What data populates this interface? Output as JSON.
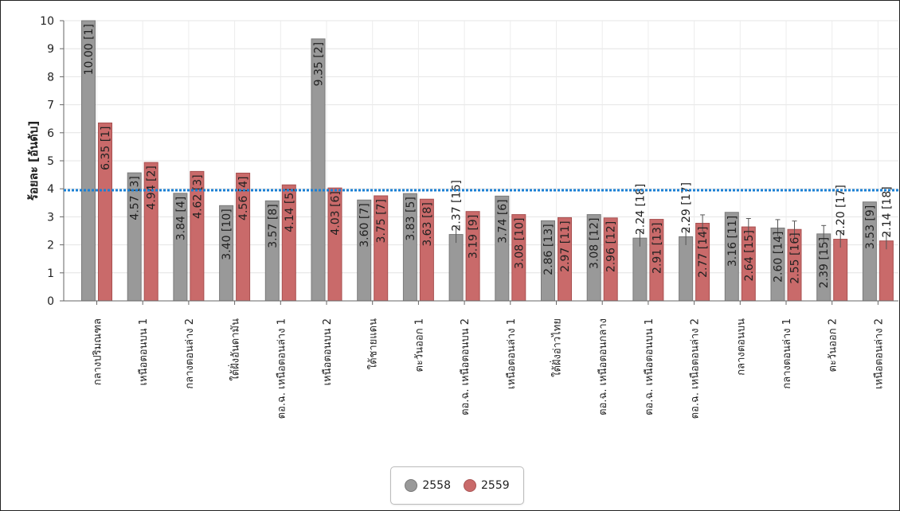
{
  "chart_data": {
    "type": "bar",
    "title": "",
    "xlabel": "",
    "ylabel": "ร้อยละ [อันดับ]",
    "ylim": [
      0,
      10
    ],
    "yticks": [
      "0",
      "1",
      "2",
      "3",
      "4",
      "5",
      "6",
      "7",
      "8",
      "9",
      "10"
    ],
    "grid": true,
    "legend_position": "bottom-center",
    "reference_line": {
      "value": 3.95,
      "style": "dotted",
      "color": "#1a7fd4"
    },
    "categories": [
      "กลางปริมณฑล",
      "เหนือตอนบน 1",
      "กลางตอนล่าง 2",
      "ใต้ฝั่งอันดามัน",
      "ตอ.ฉ. เหนือตอนล่าง 1",
      "เหนือตอนบน 2",
      "ใต้ชายแดน",
      "ตะวันออก 1",
      "ตอ.ฉ. เหนือตอนบน 2",
      "เหนือตอนล่าง 1",
      "ใต้ฝั่งอ่าวไทย",
      "ตอ.ฉ. เหนือตอนกลาง",
      "ตอ.ฉ. เหนือตอนบน 1",
      "ตอ.ฉ. เหนือตอนล่าง 2",
      "กลางตอนบน",
      "กลางตอนล่าง 1",
      "ตะวันออก 2",
      "เหนือตอนล่าง 2"
    ],
    "series": [
      {
        "name": "2558",
        "color": "#999999",
        "values": [
          10.0,
          4.57,
          3.84,
          3.4,
          3.57,
          9.35,
          3.6,
          3.83,
          2.37,
          3.74,
          2.86,
          3.08,
          2.24,
          2.29,
          3.16,
          2.6,
          2.39,
          3.53
        ],
        "labels": [
          "10.00 [1]",
          "4.57 [3]",
          "3.84 [4]",
          "3.40 [10]",
          "3.57 [8]",
          "9.35 [2]",
          "3.60 [7]",
          "3.83 [5]",
          "2.37 [16]",
          "3.74 [6]",
          "2.86 [13]",
          "3.08 [12]",
          "2.24 [18]",
          "2.29 [17]",
          "3.16 [11]",
          "2.60 [14]",
          "2.39 [15]",
          "3.53 [9]"
        ],
        "error": [
          0,
          0,
          0,
          0,
          0,
          0,
          0,
          0,
          0.3,
          0,
          0,
          0,
          0.3,
          0.3,
          0,
          0.3,
          0.3,
          0
        ]
      },
      {
        "name": "2559",
        "color": "#c96a6a",
        "values": [
          6.35,
          4.94,
          4.62,
          4.56,
          4.14,
          4.03,
          3.75,
          3.63,
          3.19,
          3.08,
          2.97,
          2.96,
          2.91,
          2.77,
          2.64,
          2.55,
          2.2,
          2.14
        ],
        "labels": [
          "6.35 [1]",
          "4.94 [2]",
          "4.62 [3]",
          "4.56 [4]",
          "4.14 [5]",
          "4.03 [6]",
          "3.75 [7]",
          "3.63 [8]",
          "3.19 [9]",
          "3.08 [10]",
          "2.97 [11]",
          "2.96 [12]",
          "2.91 [13]",
          "2.77 [14]",
          "2.64 [15]",
          "2.55 [16]",
          "2.20 [17]",
          "2.14 [18]"
        ],
        "error": [
          0,
          0,
          0,
          0,
          0,
          0,
          0,
          0,
          0,
          0,
          0,
          0,
          0,
          0.3,
          0.3,
          0.3,
          0.3,
          0.3
        ]
      }
    ]
  },
  "legend": {
    "items": [
      {
        "label": "2558",
        "color": "#999999"
      },
      {
        "label": "2559",
        "color": "#c96a6a"
      }
    ]
  }
}
